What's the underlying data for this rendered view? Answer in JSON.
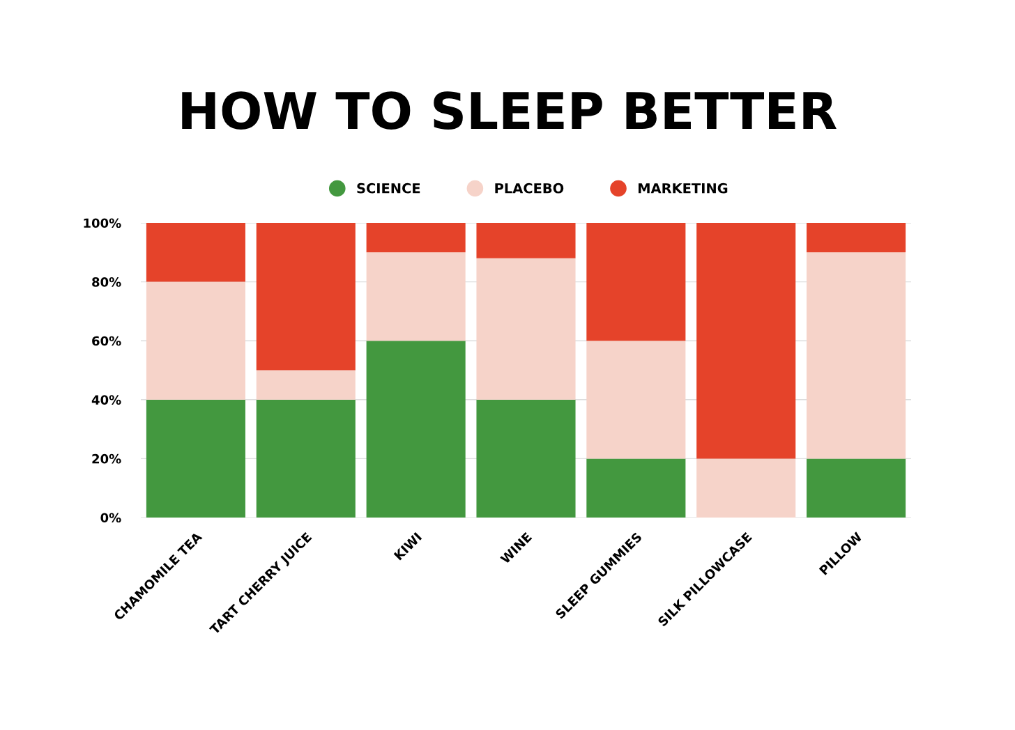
{
  "chart_data": {
    "type": "bar",
    "title": "HOW TO SLEEP BETTER",
    "stacked": true,
    "categories": [
      "CHAMOMILE TEA",
      "TART CHERRY JUICE",
      "KIWI",
      "WINE",
      "SLEEP GUMMIES",
      "SILK PILLOWCASE",
      "PILLOW"
    ],
    "series": [
      {
        "name": "SCIENCE",
        "color": "#43983f",
        "values": [
          40,
          40,
          60,
          40,
          20,
          0,
          20
        ]
      },
      {
        "name": "PLACEBO",
        "color": "#f6d3c9",
        "values": [
          40,
          10,
          30,
          48,
          40,
          20,
          70
        ]
      },
      {
        "name": "MARKETING",
        "color": "#e5432a",
        "values": [
          20,
          50,
          10,
          12,
          40,
          80,
          10
        ]
      }
    ],
    "ylim": [
      0,
      100
    ],
    "yticks": [
      {
        "value": 0,
        "label": "0%"
      },
      {
        "value": 20,
        "label": "20%"
      },
      {
        "value": 40,
        "label": "40%"
      },
      {
        "value": 60,
        "label": "60%"
      },
      {
        "value": 80,
        "label": "80%"
      },
      {
        "value": 100,
        "label": "100%"
      }
    ],
    "grid": "y",
    "legend": "top"
  }
}
